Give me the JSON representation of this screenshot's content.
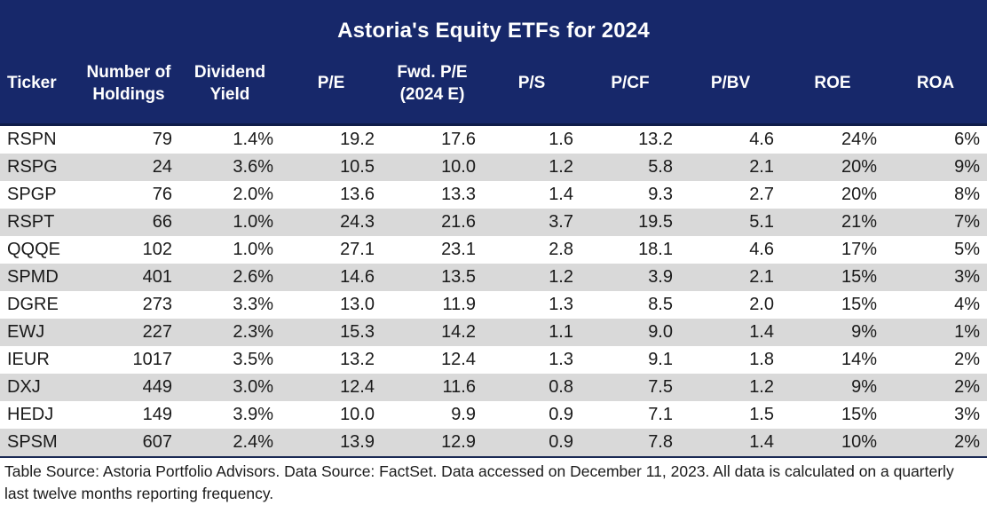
{
  "title": "Astoria's Equity ETFs for 2024",
  "table": {
    "columns": [
      {
        "key": "ticker",
        "label": "Ticker"
      },
      {
        "key": "holdings",
        "label": "Number of\nHoldings"
      },
      {
        "key": "divyield",
        "label": "Dividend\nYield"
      },
      {
        "key": "pe",
        "label": "P/E"
      },
      {
        "key": "fwdpe",
        "label": "Fwd. P/E\n(2024 E)"
      },
      {
        "key": "ps",
        "label": "P/S"
      },
      {
        "key": "pcf",
        "label": "P/CF"
      },
      {
        "key": "pbv",
        "label": "P/BV"
      },
      {
        "key": "roe",
        "label": "ROE"
      },
      {
        "key": "roa",
        "label": "ROA"
      }
    ],
    "rows": [
      [
        "RSPN",
        "79",
        "1.4%",
        "19.2",
        "17.6",
        "1.6",
        "13.2",
        "4.6",
        "24%",
        "6%"
      ],
      [
        "RSPG",
        "24",
        "3.6%",
        "10.5",
        "10.0",
        "1.2",
        "5.8",
        "2.1",
        "20%",
        "9%"
      ],
      [
        "SPGP",
        "76",
        "2.0%",
        "13.6",
        "13.3",
        "1.4",
        "9.3",
        "2.7",
        "20%",
        "8%"
      ],
      [
        "RSPT",
        "66",
        "1.0%",
        "24.3",
        "21.6",
        "3.7",
        "19.5",
        "5.1",
        "21%",
        "7%"
      ],
      [
        "QQQE",
        "102",
        "1.0%",
        "27.1",
        "23.1",
        "2.8",
        "18.1",
        "4.6",
        "17%",
        "5%"
      ],
      [
        "SPMD",
        "401",
        "2.6%",
        "14.6",
        "13.5",
        "1.2",
        "3.9",
        "2.1",
        "15%",
        "3%"
      ],
      [
        "DGRE",
        "273",
        "3.3%",
        "13.0",
        "11.9",
        "1.3",
        "8.5",
        "2.0",
        "15%",
        "4%"
      ],
      [
        "EWJ",
        "227",
        "2.3%",
        "15.3",
        "14.2",
        "1.1",
        "9.0",
        "1.4",
        "9%",
        "1%"
      ],
      [
        "IEUR",
        "1017",
        "3.5%",
        "13.2",
        "12.4",
        "1.3",
        "9.1",
        "1.8",
        "14%",
        "2%"
      ],
      [
        "DXJ",
        "449",
        "3.0%",
        "12.4",
        "11.6",
        "0.8",
        "7.5",
        "1.2",
        "9%",
        "2%"
      ],
      [
        "HEDJ",
        "149",
        "3.9%",
        "10.0",
        "9.9",
        "0.9",
        "7.1",
        "1.5",
        "15%",
        "3%"
      ],
      [
        "SPSM",
        "607",
        "2.4%",
        "13.9",
        "12.9",
        "0.9",
        "7.8",
        "1.4",
        "10%",
        "2%"
      ]
    ]
  },
  "footer": {
    "text": "Table Source: Astoria Portfolio Advisors. Data Source: FactSet. Data accessed on December 11, 2023. All data is calculated on a quarterly last twelve months reporting frequency."
  },
  "colors": {
    "header_bg": "#17286a",
    "header_text": "#ffffff",
    "row_alt_bg": "#d9d9d9",
    "body_text": "#1a1a1a"
  },
  "chart_data": {
    "type": "table",
    "title": "Astoria's Equity ETFs for 2024",
    "columns": [
      "Ticker",
      "Number of Holdings",
      "Dividend Yield",
      "P/E",
      "Fwd. P/E (2024 E)",
      "P/S",
      "P/CF",
      "P/BV",
      "ROE",
      "ROA"
    ],
    "rows": [
      {
        "ticker": "RSPN",
        "holdings": 79,
        "dividend_yield_pct": 1.4,
        "pe": 19.2,
        "fwd_pe_2024e": 17.6,
        "ps": 1.6,
        "pcf": 13.2,
        "pbv": 4.6,
        "roe_pct": 24,
        "roa_pct": 6
      },
      {
        "ticker": "RSPG",
        "holdings": 24,
        "dividend_yield_pct": 3.6,
        "pe": 10.5,
        "fwd_pe_2024e": 10.0,
        "ps": 1.2,
        "pcf": 5.8,
        "pbv": 2.1,
        "roe_pct": 20,
        "roa_pct": 9
      },
      {
        "ticker": "SPGP",
        "holdings": 76,
        "dividend_yield_pct": 2.0,
        "pe": 13.6,
        "fwd_pe_2024e": 13.3,
        "ps": 1.4,
        "pcf": 9.3,
        "pbv": 2.7,
        "roe_pct": 20,
        "roa_pct": 8
      },
      {
        "ticker": "RSPT",
        "holdings": 66,
        "dividend_yield_pct": 1.0,
        "pe": 24.3,
        "fwd_pe_2024e": 21.6,
        "ps": 3.7,
        "pcf": 19.5,
        "pbv": 5.1,
        "roe_pct": 21,
        "roa_pct": 7
      },
      {
        "ticker": "QQQE",
        "holdings": 102,
        "dividend_yield_pct": 1.0,
        "pe": 27.1,
        "fwd_pe_2024e": 23.1,
        "ps": 2.8,
        "pcf": 18.1,
        "pbv": 4.6,
        "roe_pct": 17,
        "roa_pct": 5
      },
      {
        "ticker": "SPMD",
        "holdings": 401,
        "dividend_yield_pct": 2.6,
        "pe": 14.6,
        "fwd_pe_2024e": 13.5,
        "ps": 1.2,
        "pcf": 3.9,
        "pbv": 2.1,
        "roe_pct": 15,
        "roa_pct": 3
      },
      {
        "ticker": "DGRE",
        "holdings": 273,
        "dividend_yield_pct": 3.3,
        "pe": 13.0,
        "fwd_pe_2024e": 11.9,
        "ps": 1.3,
        "pcf": 8.5,
        "pbv": 2.0,
        "roe_pct": 15,
        "roa_pct": 4
      },
      {
        "ticker": "EWJ",
        "holdings": 227,
        "dividend_yield_pct": 2.3,
        "pe": 15.3,
        "fwd_pe_2024e": 14.2,
        "ps": 1.1,
        "pcf": 9.0,
        "pbv": 1.4,
        "roe_pct": 9,
        "roa_pct": 1
      },
      {
        "ticker": "IEUR",
        "holdings": 1017,
        "dividend_yield_pct": 3.5,
        "pe": 13.2,
        "fwd_pe_2024e": 12.4,
        "ps": 1.3,
        "pcf": 9.1,
        "pbv": 1.8,
        "roe_pct": 14,
        "roa_pct": 2
      },
      {
        "ticker": "DXJ",
        "holdings": 449,
        "dividend_yield_pct": 3.0,
        "pe": 12.4,
        "fwd_pe_2024e": 11.6,
        "ps": 0.8,
        "pcf": 7.5,
        "pbv": 1.2,
        "roe_pct": 9,
        "roa_pct": 2
      },
      {
        "ticker": "HEDJ",
        "holdings": 149,
        "dividend_yield_pct": 3.9,
        "pe": 10.0,
        "fwd_pe_2024e": 9.9,
        "ps": 0.9,
        "pcf": 7.1,
        "pbv": 1.5,
        "roe_pct": 15,
        "roa_pct": 3
      },
      {
        "ticker": "SPSM",
        "holdings": 607,
        "dividend_yield_pct": 2.4,
        "pe": 13.9,
        "fwd_pe_2024e": 12.9,
        "ps": 0.9,
        "pcf": 7.8,
        "pbv": 1.4,
        "roe_pct": 10,
        "roa_pct": 2
      }
    ],
    "source_note": "Table Source: Astoria Portfolio Advisors. Data Source: FactSet. Data accessed on December 11, 2023. All data is calculated on a quarterly last twelve months reporting frequency."
  }
}
